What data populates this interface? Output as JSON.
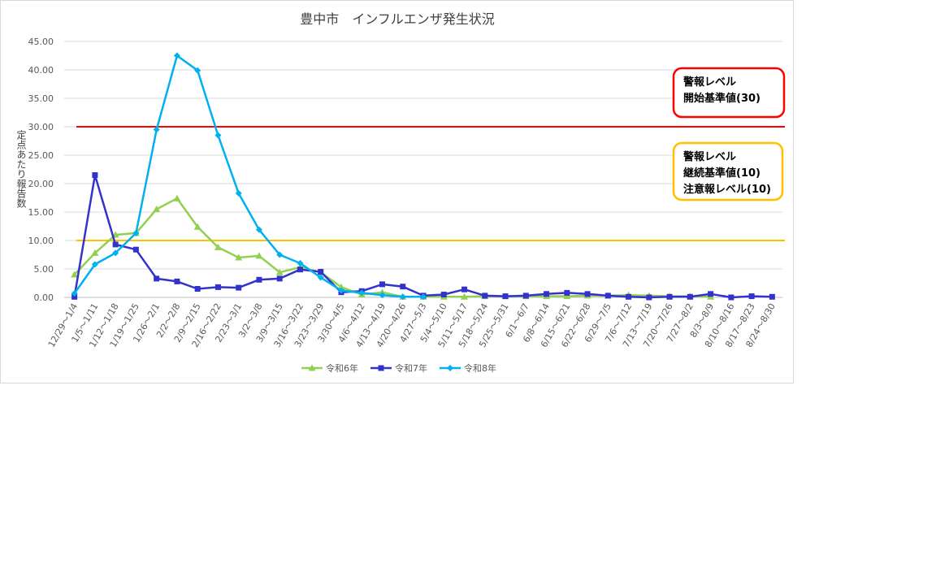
{
  "chart_data": {
    "type": "line",
    "title": "豊中市　インフルエンザ発生状況",
    "ylabel": "定点あたり報告数",
    "xlabel": "",
    "ylim": [
      0,
      45
    ],
    "yticks": [
      "0.00",
      "5.00",
      "10.00",
      "15.00",
      "20.00",
      "25.00",
      "30.00",
      "35.00",
      "40.00",
      "45.00"
    ],
    "grid": true,
    "legend_position": "bottom",
    "categories": [
      "12/29～1/4",
      "1/5～1/11",
      "1/12～1/18",
      "1/19～1/25",
      "1/26～2/1",
      "2/2～2/8",
      "2/9～2/15",
      "2/16～2/22",
      "2/23～3/1",
      "3/2～3/8",
      "3/9～3/15",
      "3/16～3/22",
      "3/23～3/29",
      "3/30～4/5",
      "4/6～4/12",
      "4/13～4/19",
      "4/20～4/26",
      "4/27～5/3",
      "5/4～5/10",
      "5/11～5/17",
      "5/18～5/24",
      "5/25～5/31",
      "6/1～6/7",
      "6/8～6/14",
      "6/15～6/21",
      "6/22～6/28",
      "6/29～7/5",
      "7/6～7/12",
      "7/13～7/19",
      "7/20～7/26",
      "7/27～8/2",
      "8/3～8/9",
      "8/10～8/16",
      "8/17～8/23",
      "8/24～8/30"
    ],
    "series": [
      {
        "name": "令和6年",
        "color": "#92d050",
        "marker": "triangle",
        "values": [
          4.0,
          7.8,
          11.0,
          11.3,
          15.5,
          17.4,
          12.4,
          8.8,
          7.0,
          7.3,
          4.4,
          5.3,
          4.4,
          1.8,
          0.5,
          0.9,
          0.1,
          0.1,
          0.1,
          0.1,
          0.2,
          0.2,
          0.2,
          0.2,
          0.2,
          0.3,
          0.3,
          0.4,
          0.3,
          0.2,
          0.2,
          0.1,
          null,
          null,
          null
        ]
      },
      {
        "name": "令和7年",
        "color": "#3333cc",
        "marker": "square",
        "values": [
          0.1,
          21.5,
          9.3,
          8.4,
          3.3,
          2.8,
          1.5,
          1.8,
          1.7,
          3.1,
          3.3,
          4.9,
          4.5,
          0.9,
          1.1,
          2.3,
          1.9,
          0.3,
          0.5,
          1.4,
          0.3,
          0.2,
          0.3,
          0.6,
          0.8,
          0.6,
          0.3,
          0.1,
          0.0,
          0.1,
          0.1,
          0.6,
          0.0,
          0.2,
          0.1
        ]
      },
      {
        "name": "令和8年",
        "color": "#00b0f0",
        "marker": "diamond",
        "values": [
          0.7,
          5.8,
          7.8,
          11.3,
          29.5,
          42.5,
          39.9,
          28.5,
          18.3,
          11.9,
          7.5,
          6.0,
          3.5,
          1.2,
          0.8,
          0.4,
          0.1,
          0.1,
          null,
          null,
          null,
          null,
          null,
          null,
          null,
          null,
          null,
          null,
          null,
          null,
          null,
          null,
          null,
          null,
          null
        ]
      }
    ],
    "reference_lines": [
      {
        "value": 30,
        "color": "#ff0000"
      },
      {
        "value": 10,
        "color": "#ffc000"
      }
    ],
    "annotations": [
      {
        "lines": [
          "警報レベル",
          "開始基準値(30)"
        ],
        "border": "#ff0000"
      },
      {
        "lines": [
          "警報レベル",
          "継続基準値(10)",
          "注意報レベル(10)"
        ],
        "border": "#ffc000"
      }
    ]
  }
}
